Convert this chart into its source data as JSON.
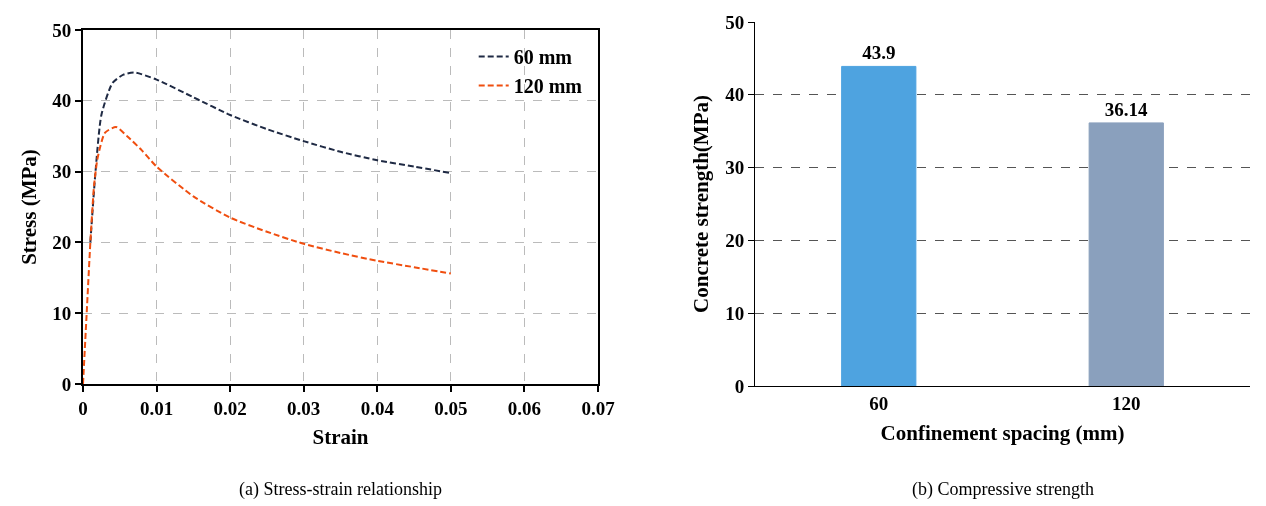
{
  "chart_data": [
    {
      "type": "line",
      "xlabel": "Strain",
      "ylabel": "Stress (MPa)",
      "annotations": [
        "(a) Stress-strain relationship"
      ],
      "xlim": [
        0,
        0.07
      ],
      "xticks": [
        0,
        0.01,
        0.02,
        0.03,
        0.04,
        0.05,
        0.06,
        0.07
      ],
      "ylim": [
        0,
        50
      ],
      "yticks": [
        0,
        10,
        20,
        30,
        40,
        50
      ],
      "grid": true,
      "legend": "top right",
      "line_style": "dashed",
      "marker": "none",
      "series": [
        {
          "name": "60 mm",
          "color": "#1f2a44",
          "x": [
            0.001,
            0.0017,
            0.0025,
            0.004,
            0.0055,
            0.007,
            0.01,
            0.015,
            0.02,
            0.025,
            0.03,
            0.035,
            0.04,
            0.045,
            0.05
          ],
          "values": [
            20,
            30,
            38,
            42.5,
            43.7,
            44,
            43,
            40.5,
            38,
            36,
            34.3,
            32.8,
            31.6,
            30.7,
            29.8
          ]
        },
        {
          "name": "120 mm",
          "color": "#f04e0f",
          "x": [
            0,
            0.0005,
            0.001,
            0.0015,
            0.002,
            0.003,
            0.0045,
            0.006,
            0.008,
            0.01,
            0.015,
            0.02,
            0.025,
            0.03,
            0.035,
            0.04,
            0.045,
            0.05
          ],
          "values": [
            0,
            10,
            20,
            28,
            32,
            35.5,
            36.3,
            35,
            33,
            30.7,
            26.5,
            23.5,
            21.5,
            19.8,
            18.5,
            17.4,
            16.5,
            15.6
          ]
        }
      ]
    },
    {
      "type": "bar",
      "xlabel": "Confinement spacing (mm)",
      "ylabel": "Concrete strength(MPa)",
      "annotations": [
        "(b) Compressive strength"
      ],
      "categories": [
        "60",
        "120"
      ],
      "values": [
        43.9,
        36.14
      ],
      "colors": [
        "#4ea3e0",
        "#8aa0bd"
      ],
      "data_labels": true,
      "ylim": [
        0,
        50
      ],
      "yticks": [
        0,
        10,
        20,
        30,
        40,
        50
      ],
      "grid": "y",
      "legend": false
    }
  ]
}
